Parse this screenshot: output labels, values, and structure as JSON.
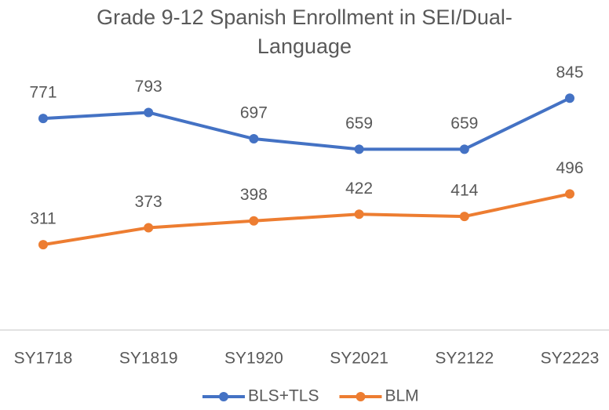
{
  "chart_data": {
    "type": "line",
    "title": "Grade 9-12 Spanish Enrollment in SEI/Dual-Language",
    "categories": [
      "SY1718",
      "SY1819",
      "SY1920",
      "SY2021",
      "SY2122",
      "SY2223"
    ],
    "series": [
      {
        "name": "BLS+TLS",
        "color": "#4472c4",
        "values": [
          771,
          793,
          697,
          659,
          659,
          845
        ]
      },
      {
        "name": "BLM",
        "color": "#ed7d31",
        "values": [
          311,
          373,
          398,
          422,
          414,
          496
        ]
      }
    ],
    "ylim": [
      0,
      1000
    ],
    "legend": "bottom"
  }
}
